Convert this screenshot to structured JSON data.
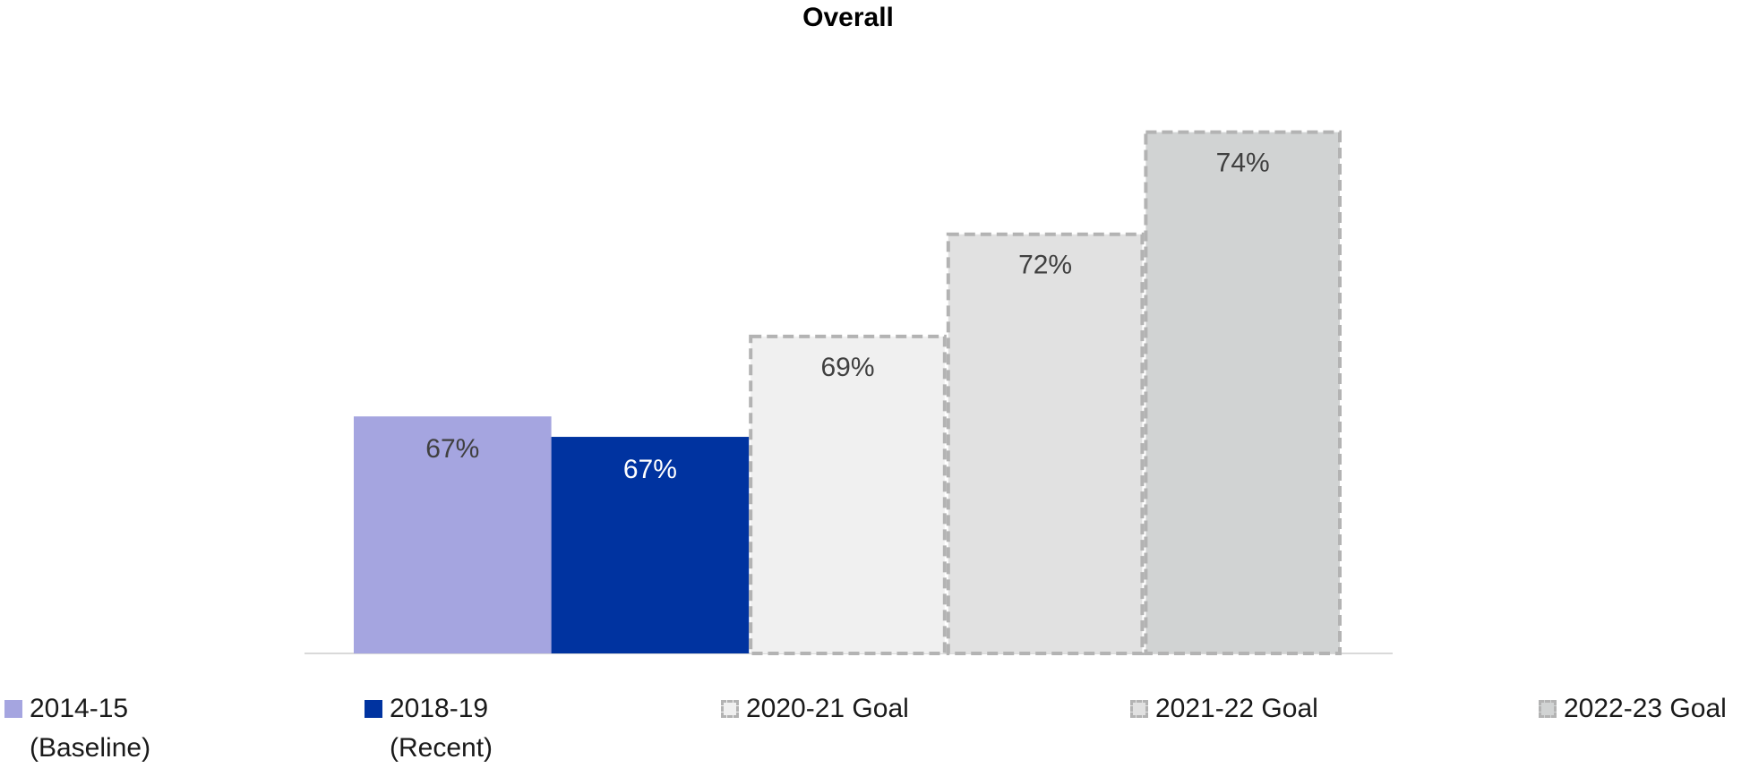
{
  "chart_data": {
    "type": "bar",
    "title": "Overall",
    "categories": [
      null
    ],
    "ylim": [
      61.2,
      75
    ],
    "series": [
      {
        "name": "2014-15 (Baseline)",
        "color": "#a5a5e0",
        "label_color": "#404040",
        "values": [
          67.0
        ],
        "value_labels": [
          "67%"
        ]
      },
      {
        "name": "2018-19 (Recent)",
        "color": "#0033a0",
        "label_color": "#ffffff",
        "values": [
          66.5
        ],
        "value_labels": [
          "67%"
        ]
      },
      {
        "name": "2020-21 Goal",
        "color": "#f0f0f0",
        "border": "#b3b3b3",
        "label_color": "#404040",
        "values": [
          69
        ],
        "value_labels": [
          "69%"
        ]
      },
      {
        "name": "2021-22 Goal",
        "color": "#e1e1e1",
        "border": "#b3b3b3",
        "label_color": "#404040",
        "values": [
          71.5
        ],
        "value_labels": [
          "72%"
        ]
      },
      {
        "name": "2022-23 Goal",
        "color": "#d1d3d3",
        "border": "#b3b3b3",
        "label_color": "#404040",
        "values": [
          74
        ],
        "value_labels": [
          "74%"
        ]
      }
    ]
  }
}
